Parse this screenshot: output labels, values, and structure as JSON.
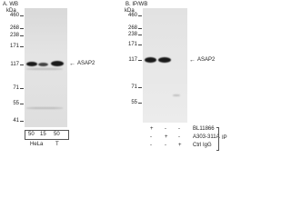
{
  "panels": [
    {
      "label": "A. WB",
      "unit": "kDa",
      "markers": [
        "460",
        "268",
        "238",
        "171",
        "117",
        "71",
        "55",
        "41"
      ],
      "target": "ASAP2",
      "lanes": [
        "50",
        "15",
        "50"
      ],
      "groups": [
        "HeLa",
        "T"
      ]
    },
    {
      "label": "B. IP/WB",
      "unit": "kDa",
      "markers": [
        "460",
        "268",
        "238",
        "171",
        "117",
        "71",
        "55"
      ],
      "target": "ASAP2",
      "rows": [
        {
          "name": "BL11866",
          "signs": [
            "+",
            "-",
            "-"
          ]
        },
        {
          "name": "A303-311A",
          "signs": [
            "-",
            "+",
            "-"
          ]
        },
        {
          "name": "Ctrl IgG",
          "signs": [
            "-",
            "-",
            "+"
          ]
        }
      ],
      "group": "IP"
    }
  ]
}
